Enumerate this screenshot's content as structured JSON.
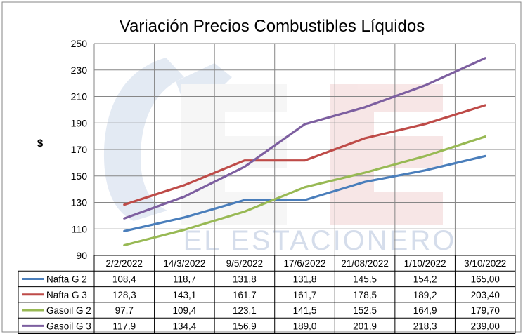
{
  "watermark": {
    "text": "EL ESTACIONERO"
  },
  "chart_data": {
    "type": "line",
    "title": "Variación Precios Combustibles Líquidos",
    "ylabel": "$",
    "xlabel": "",
    "ylim": [
      90,
      250
    ],
    "yticks": [
      "90",
      "110",
      "130",
      "150",
      "170",
      "190",
      "210",
      "230",
      "250"
    ],
    "grid": true,
    "legend": "data-table",
    "categories": [
      "2/2/2022",
      "14/3/2022",
      "9/5/2022",
      "17/6/2022",
      "21/08/2022",
      "1/10/2022",
      "3/10/2022"
    ],
    "series": [
      {
        "name": "Nafta G 2",
        "color": "#4a7ebb",
        "values": [
          108.4,
          118.7,
          131.8,
          131.8,
          145.5,
          154.2,
          165.0
        ],
        "labels": [
          "108,4",
          "118,7",
          "131,8",
          "131,8",
          "145,5",
          "154,2",
          "165,00"
        ]
      },
      {
        "name": "Nafta G 3",
        "color": "#be4b48",
        "values": [
          128.3,
          143.1,
          161.7,
          161.7,
          178.5,
          189.2,
          203.4
        ],
        "labels": [
          "128,3",
          "143,1",
          "161,7",
          "161,7",
          "178,5",
          "189,2",
          "203,40"
        ]
      },
      {
        "name": "Gasoil G 2",
        "color": "#98b954",
        "values": [
          97.7,
          109.4,
          123.1,
          141.5,
          152.5,
          164.9,
          179.7
        ],
        "labels": [
          "97,7",
          "109,4",
          "123,1",
          "141,5",
          "152,5",
          "164,9",
          "179,70"
        ]
      },
      {
        "name": "Gasoil G 3",
        "color": "#7d5fa0",
        "values": [
          117.9,
          134.4,
          156.9,
          189.0,
          201.9,
          218.3,
          239.0
        ],
        "labels": [
          "117,9",
          "134,4",
          "156,9",
          "189,0",
          "201,9",
          "218,3",
          "239,00"
        ]
      }
    ]
  }
}
